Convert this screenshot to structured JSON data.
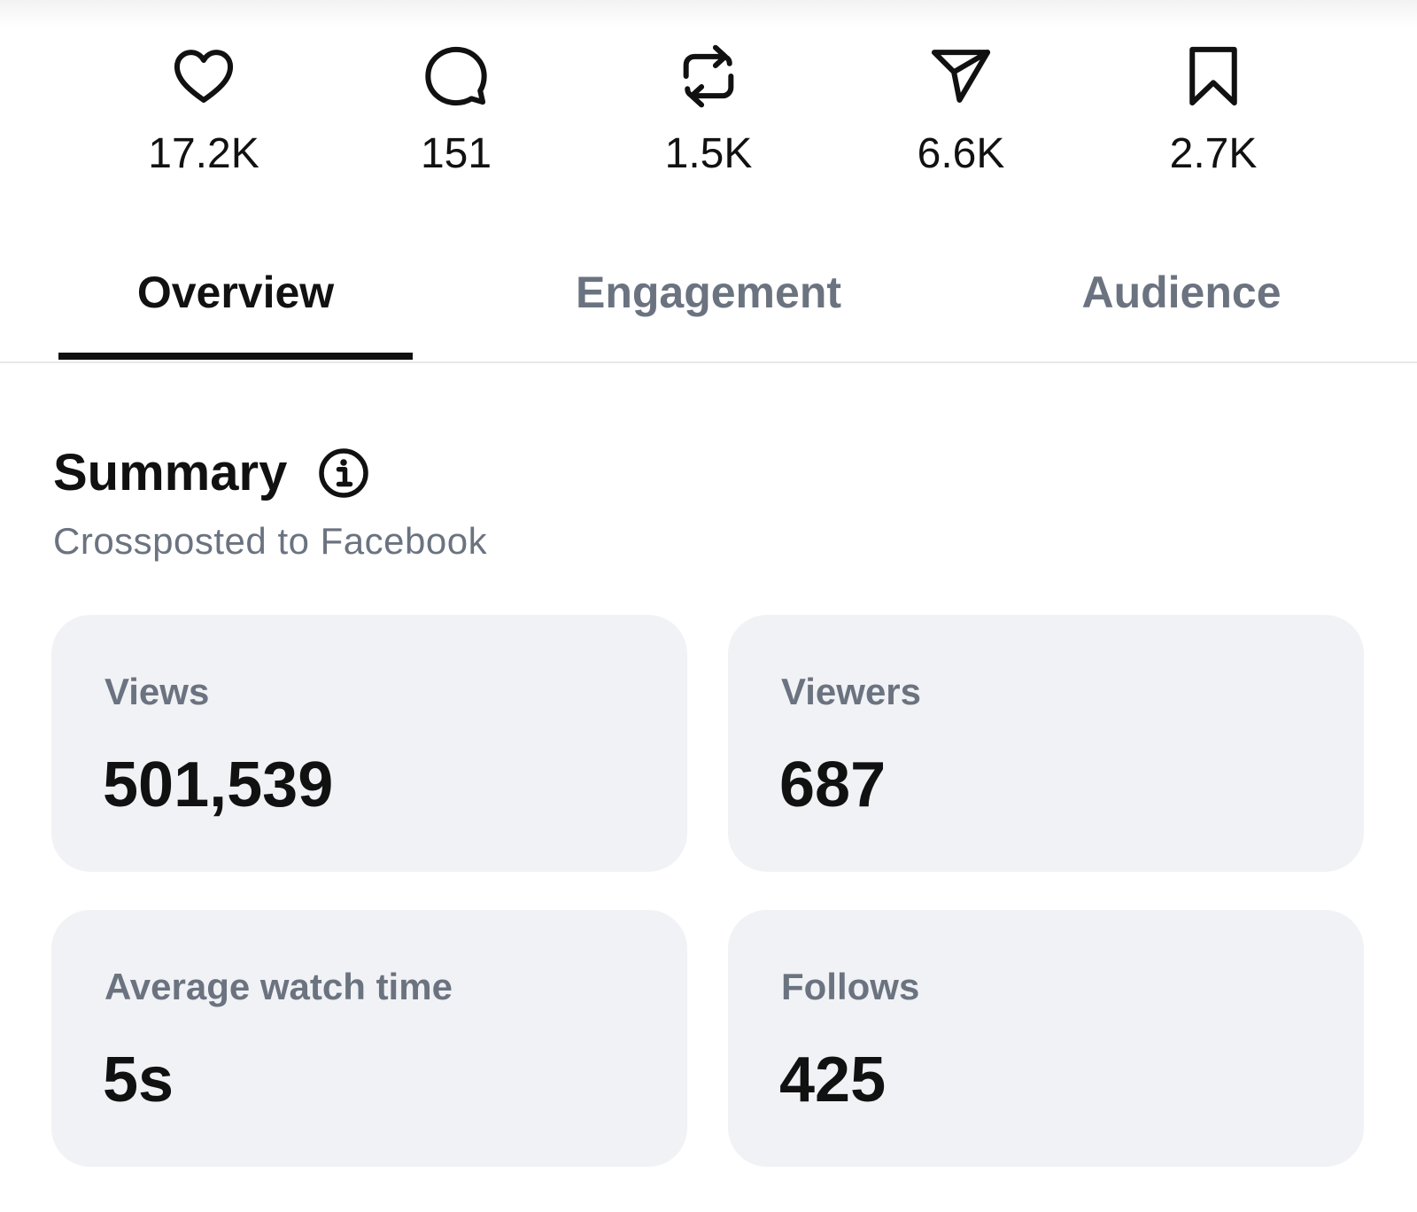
{
  "actions": [
    {
      "icon": "heart-icon",
      "count": "17.2K"
    },
    {
      "icon": "comment-icon",
      "count": "151"
    },
    {
      "icon": "repost-icon",
      "count": "1.5K"
    },
    {
      "icon": "share-icon",
      "count": "6.6K"
    },
    {
      "icon": "bookmark-icon",
      "count": "2.7K"
    }
  ],
  "tabs": [
    {
      "label": "Overview",
      "active": true
    },
    {
      "label": "Engagement",
      "active": false
    },
    {
      "label": "Audience",
      "active": false
    }
  ],
  "summary": {
    "title": "Summary",
    "subtitle": "Crossposted to Facebook",
    "info_icon": "info-icon"
  },
  "cards": [
    {
      "label": "Views",
      "value": "501,539"
    },
    {
      "label": "Viewers",
      "value": "687"
    },
    {
      "label": "Average watch time",
      "value": "5s"
    },
    {
      "label": "Follows",
      "value": "425"
    }
  ],
  "colors": {
    "text_primary": "#111111",
    "text_secondary": "#6b7380",
    "card_background": "#f1f2f5",
    "divider": "#e7e8ea"
  }
}
